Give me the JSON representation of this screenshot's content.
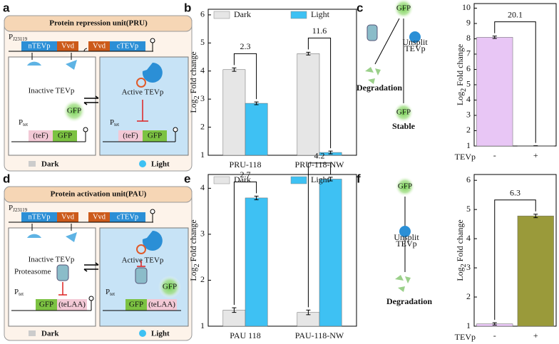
{
  "panel_labels": [
    "a",
    "b",
    "c",
    "d",
    "e",
    "f"
  ],
  "diagram_a": {
    "title": "Protein repression unit(PRU)",
    "promoter": "P",
    "promoter_sub": "J23119",
    "genes": [
      "nTEVp",
      "Vvd",
      "Vvd",
      "cTEVp"
    ],
    "inactive": "Inactive TEVp",
    "active": "Active TEVp",
    "reporter_promoter": "P",
    "reporter_promoter_sub": "tet",
    "tag": "(teF)",
    "reporter": "GFP",
    "free_gfp": "GFP",
    "reporter_promoter_right": "P",
    "reporter_promoter_sub_right": "tet",
    "tag_right": "(teF)",
    "reporter_right": "GFP",
    "dark": "Dark",
    "light": "Light"
  },
  "diagram_c": {
    "gfp": "GFP",
    "unsplit": [
      "Unsplit",
      "TEVp"
    ],
    "degradation": "Degradation",
    "gfp_stable": "GFP",
    "stable": "Stable"
  },
  "diagram_d": {
    "title": "Protein activation unit(PAU)",
    "promoter": "P",
    "promoter_sub": "J23119",
    "genes": [
      "nTEVp",
      "Vvd",
      "Vvd",
      "cTEVp"
    ],
    "inactive": "Inactive TEVp",
    "active": "Active TEVp",
    "proteasome": "Proteasome",
    "reporter_promoter": "P",
    "reporter_promoter_sub": "tet",
    "reporter": "GFP",
    "tag": "(teLAA)",
    "reporter_promoter_right": "P",
    "reporter_promoter_sub_right": "tet",
    "reporter_right": "GFP",
    "tag_right": "(teLAA)",
    "free_gfp": "GFP",
    "dark": "Dark",
    "light": "Light"
  },
  "diagram_f": {
    "gfp": "GFP",
    "unsplit": [
      "Unsplit",
      "TEVp"
    ],
    "degradation": "Degradation"
  },
  "chart_data": [
    {
      "type": "bar",
      "categories": [
        "PRU-118",
        "PRU-118-NW"
      ],
      "series": [
        {
          "name": "Dark",
          "color": "#e6e6e6",
          "values": [
            4.05,
            4.62
          ],
          "errors": [
            0.06,
            0.05
          ]
        },
        {
          "name": "Light",
          "color": "#3ec1f3",
          "values": [
            2.85,
            1.1
          ],
          "errors": [
            0.05,
            0.05
          ]
        }
      ],
      "annotations": [
        2.3,
        11.6
      ],
      "ylabel": [
        "Log",
        "2",
        "Fold change"
      ],
      "ylim": [
        1,
        6.2
      ],
      "yticks": [
        1,
        2,
        3,
        4,
        5,
        6
      ],
      "legend": "top"
    },
    {
      "type": "bar",
      "categories": [
        "-",
        "+"
      ],
      "values": [
        8.1,
        1.02
      ],
      "errors": [
        0.08,
        0
      ],
      "colors": [
        "#e8c6f5",
        "#9a9a3a"
      ],
      "annotations": [
        20.1
      ],
      "xlabel": "TEVp",
      "ylabel": [
        "Log",
        "2",
        "Fold change"
      ],
      "ylim": [
        1,
        10.3
      ],
      "yticks": [
        1,
        2,
        3,
        4,
        5,
        6,
        7,
        8,
        9,
        10
      ]
    },
    {
      "type": "bar",
      "categories": [
        "PAU 118",
        "PAU-118-NW"
      ],
      "series": [
        {
          "name": "Dark",
          "color": "#e6e6e6",
          "values": [
            1.35,
            1.3
          ],
          "errors": [
            0.05,
            0.05
          ]
        },
        {
          "name": "Light",
          "color": "#3ec1f3",
          "values": [
            3.79,
            4.2
          ],
          "errors": [
            0.04,
            0.04
          ]
        }
      ],
      "annotations": [
        2.7,
        4.2
      ],
      "ylabel": [
        "Log",
        "2",
        "Fold change"
      ],
      "ylim": [
        1,
        4.3
      ],
      "yticks": [
        1,
        2,
        3,
        4
      ],
      "legend": "top"
    },
    {
      "type": "bar",
      "categories": [
        "-",
        "+"
      ],
      "values": [
        1.08,
        4.78
      ],
      "errors": [
        0.04,
        0.06
      ],
      "colors": [
        "#e8c6f5",
        "#9a9a3a"
      ],
      "annotations": [
        6.3
      ],
      "xlabel": "TEVp",
      "ylabel": [
        "Log",
        "2",
        "Fold change"
      ],
      "ylim": [
        1,
        6.2
      ],
      "yticks": [
        1,
        2,
        3,
        4,
        5,
        6
      ]
    }
  ]
}
